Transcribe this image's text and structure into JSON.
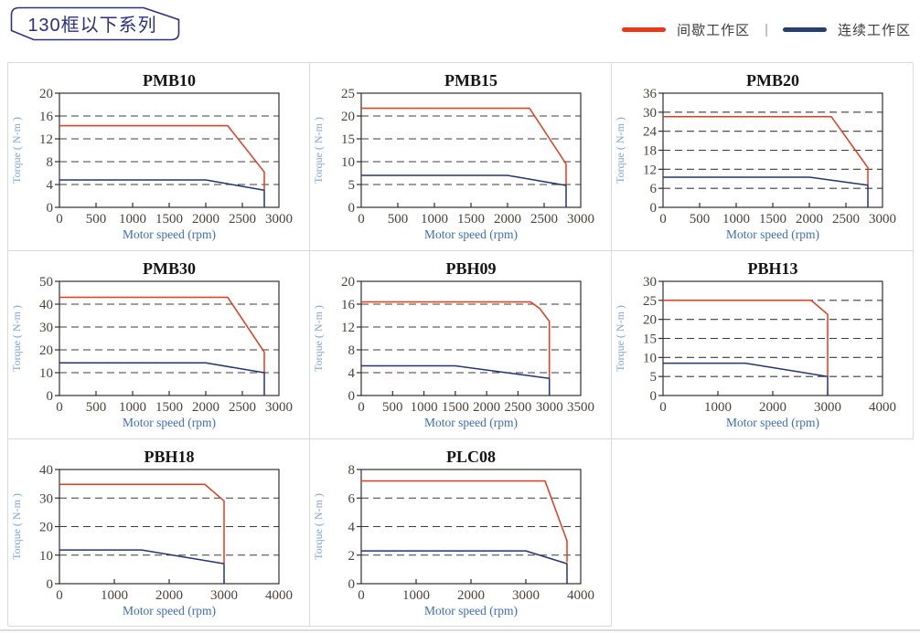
{
  "header": {
    "badge": {
      "text": "130框以下系列",
      "color": "#2b2f86"
    },
    "legend": {
      "items": [
        {
          "label": "间歇工作区",
          "color": "#e8391a"
        },
        {
          "label": "连续工作区",
          "color": "#27406f"
        }
      ],
      "separator": "|"
    }
  },
  "grid": {
    "cell_border_color": "#d9d9d9"
  },
  "chart_style": {
    "plot_border_color": "#2f2f2f",
    "grid_color": "#3c3c3c",
    "tick_color": "#2f2f2f",
    "tick_label_color": "#4e4238",
    "title_color": "#151515",
    "xlabel_color": "#3a6cc5",
    "ylabel_color": "#7ba3d9",
    "red": "#e8391a",
    "blue": "#23366f"
  },
  "chart_data": [
    {
      "type": "line",
      "title": "PMB10",
      "xlabel": "Motor speed (rpm)",
      "ylabel": "Torque ( N-m )",
      "xlim": [
        0,
        3000
      ],
      "ylim": [
        0,
        20
      ],
      "xticks": [
        0,
        500,
        1000,
        1500,
        2000,
        2500,
        3000
      ],
      "yticks": [
        0,
        4,
        8,
        12,
        16,
        20
      ],
      "grid": "dashed-horizontal",
      "legend_position": "none",
      "series": [
        {
          "name": "间歇工作区",
          "color": "#e8391a",
          "points": [
            [
              0,
              14.3
            ],
            [
              2300,
              14.3
            ],
            [
              2800,
              6.2
            ],
            [
              2800,
              3.1
            ]
          ]
        },
        {
          "name": "连续工作区",
          "color": "#23366f",
          "points": [
            [
              0,
              4.8
            ],
            [
              2000,
              4.8
            ],
            [
              2800,
              3.0
            ],
            [
              2800,
              0
            ]
          ]
        }
      ]
    },
    {
      "type": "line",
      "title": "PMB15",
      "xlabel": "Motor speed (rpm)",
      "ylabel": "Torque ( N-m )",
      "xlim": [
        0,
        3000
      ],
      "ylim": [
        0,
        25
      ],
      "xticks": [
        0,
        500,
        1000,
        1500,
        2000,
        2500,
        3000
      ],
      "yticks": [
        0,
        5,
        10,
        15,
        20,
        25
      ],
      "grid": "dashed-horizontal",
      "legend_position": "none",
      "series": [
        {
          "name": "间歇工作区",
          "color": "#e8391a",
          "points": [
            [
              0,
              21.7
            ],
            [
              2300,
              21.7
            ],
            [
              2800,
              9.5
            ],
            [
              2800,
              4.9
            ]
          ]
        },
        {
          "name": "连续工作区",
          "color": "#23366f",
          "points": [
            [
              0,
              7.0
            ],
            [
              2000,
              7.0
            ],
            [
              2800,
              4.8
            ],
            [
              2800,
              0
            ]
          ]
        }
      ]
    },
    {
      "type": "line",
      "title": "PMB20",
      "xlabel": "Motor speed (rpm)",
      "ylabel": "Torque ( N-m )",
      "xlim": [
        0,
        3000
      ],
      "ylim": [
        0,
        36
      ],
      "xticks": [
        0,
        500,
        1000,
        1500,
        2000,
        2500,
        3000
      ],
      "yticks": [
        0,
        6,
        12,
        18,
        24,
        30,
        36
      ],
      "grid": "dashed-horizontal",
      "legend_position": "none",
      "series": [
        {
          "name": "间歇工作区",
          "color": "#e8391a",
          "points": [
            [
              0,
              28.6
            ],
            [
              2300,
              28.6
            ],
            [
              2800,
              12.5
            ],
            [
              2800,
              7.1
            ]
          ]
        },
        {
          "name": "连续工作区",
          "color": "#23366f",
          "points": [
            [
              0,
              9.5
            ],
            [
              2000,
              9.5
            ],
            [
              2800,
              7.0
            ],
            [
              2800,
              0
            ]
          ]
        }
      ]
    },
    {
      "type": "line",
      "title": "PMB30",
      "xlabel": "Motor speed (rpm)",
      "ylabel": "Torque ( N-m )",
      "xlim": [
        0,
        3000
      ],
      "ylim": [
        0,
        50
      ],
      "xticks": [
        0,
        500,
        1000,
        1500,
        2000,
        2500,
        3000
      ],
      "yticks": [
        0,
        10,
        20,
        30,
        40,
        50
      ],
      "grid": "dashed-horizontal",
      "legend_position": "none",
      "series": [
        {
          "name": "间歇工作区",
          "color": "#e8391a",
          "points": [
            [
              0,
              43
            ],
            [
              2300,
              43
            ],
            [
              2800,
              19
            ],
            [
              2800,
              10.2
            ]
          ]
        },
        {
          "name": "连续工作区",
          "color": "#23366f",
          "points": [
            [
              0,
              14.3
            ],
            [
              2000,
              14.3
            ],
            [
              2800,
              10
            ],
            [
              2800,
              0
            ]
          ]
        }
      ]
    },
    {
      "type": "line",
      "title": "PBH09",
      "xlabel": "Motor speed (rpm)",
      "ylabel": "Torque ( N-m )",
      "xlim": [
        0,
        3500
      ],
      "ylim": [
        0,
        20
      ],
      "xticks": [
        0,
        500,
        1000,
        1500,
        2000,
        2500,
        3000,
        3500
      ],
      "yticks": [
        0,
        4,
        8,
        12,
        16,
        20
      ],
      "grid": "dashed-horizontal",
      "legend_position": "none",
      "series": [
        {
          "name": "间歇工作区",
          "color": "#e8391a",
          "points": [
            [
              0,
              16.4
            ],
            [
              2700,
              16.4
            ],
            [
              2850,
              15.2
            ],
            [
              3000,
              13
            ],
            [
              3000,
              3.1
            ]
          ]
        },
        {
          "name": "连续工作区",
          "color": "#23366f",
          "points": [
            [
              0,
              5.2
            ],
            [
              1500,
              5.2
            ],
            [
              3000,
              3.0
            ],
            [
              3000,
              0
            ]
          ]
        }
      ]
    },
    {
      "type": "line",
      "title": "PBH13",
      "xlabel": "Motor speed (rpm)",
      "ylabel": "Torque ( N-m )",
      "xlim": [
        0,
        4000
      ],
      "ylim": [
        0,
        30
      ],
      "xticks": [
        0,
        1000,
        2000,
        3000,
        4000
      ],
      "yticks": [
        0,
        5,
        10,
        15,
        20,
        25,
        30
      ],
      "grid": "dashed-horizontal",
      "legend_position": "none",
      "series": [
        {
          "name": "间歇工作区",
          "color": "#e8391a",
          "points": [
            [
              0,
              25
            ],
            [
              2700,
              25
            ],
            [
              3000,
              21.3
            ],
            [
              3000,
              5.1
            ]
          ]
        },
        {
          "name": "连续工作区",
          "color": "#23366f",
          "points": [
            [
              0,
              8.5
            ],
            [
              1500,
              8.5
            ],
            [
              3000,
              5.0
            ],
            [
              3000,
              0
            ]
          ]
        }
      ]
    },
    {
      "type": "line",
      "title": "PBH18",
      "xlabel": "Motor speed (rpm)",
      "ylabel": "Torque ( N-m )",
      "xlim": [
        0,
        4000
      ],
      "ylim": [
        0,
        40
      ],
      "xticks": [
        0,
        1000,
        2000,
        3000,
        4000
      ],
      "yticks": [
        0,
        10,
        20,
        30,
        40
      ],
      "grid": "dashed-horizontal",
      "legend_position": "none",
      "series": [
        {
          "name": "间歇工作区",
          "color": "#e8391a",
          "points": [
            [
              0,
              34.8
            ],
            [
              2650,
              34.8
            ],
            [
              3000,
              29
            ],
            [
              3000,
              7.1
            ]
          ]
        },
        {
          "name": "连续工作区",
          "color": "#23366f",
          "points": [
            [
              0,
              11.8
            ],
            [
              1500,
              11.8
            ],
            [
              3000,
              7.0
            ],
            [
              3000,
              0
            ]
          ]
        }
      ]
    },
    {
      "type": "line",
      "title": "PLC08",
      "xlabel": "Motor speed (rpm)",
      "ylabel": "Torque ( N-m )",
      "xlim": [
        0,
        4000
      ],
      "ylim": [
        0,
        8
      ],
      "xticks": [
        0,
        1000,
        2000,
        3000,
        4000
      ],
      "yticks": [
        0,
        2,
        4,
        6,
        8
      ],
      "grid": "dashed-horizontal",
      "legend_position": "none",
      "series": [
        {
          "name": "间歇工作区",
          "color": "#e8391a",
          "points": [
            [
              0,
              7.2
            ],
            [
              3350,
              7.2
            ],
            [
              3750,
              3.0
            ],
            [
              3750,
              1.5
            ]
          ]
        },
        {
          "name": "连续工作区",
          "color": "#23366f",
          "points": [
            [
              0,
              2.3
            ],
            [
              3000,
              2.3
            ],
            [
              3750,
              1.4
            ],
            [
              3750,
              0
            ]
          ]
        }
      ]
    }
  ]
}
